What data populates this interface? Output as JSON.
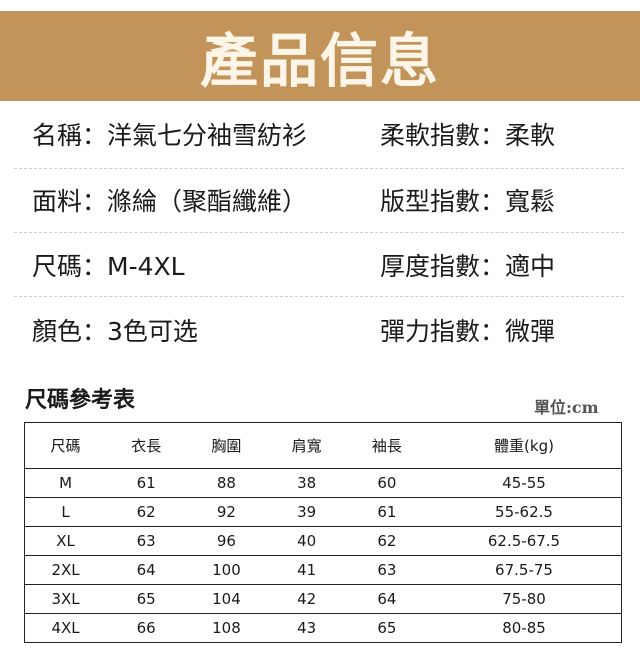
{
  "banner": {
    "title": "產品信息",
    "color": "#c29459"
  },
  "info": [
    {
      "left_label": "名稱：",
      "left_value": "洋氣七分袖雪紡衫",
      "right_label": "柔軟指數：",
      "right_value": "柔軟"
    },
    {
      "left_label": "面料：",
      "left_value": "滌綸（聚酯纖維）",
      "right_label": "版型指數：",
      "right_value": "寬鬆"
    },
    {
      "left_label": "尺碼：",
      "left_value": "M-4XL",
      "right_label": "厚度指數：",
      "right_value": "適中"
    },
    {
      "left_label": "顏色：",
      "left_value": "3色可选",
      "right_label": "彈力指數：",
      "right_value": "微彈"
    }
  ],
  "size_chart": {
    "title": "尺碼參考表",
    "unit": "單位:cm",
    "headers": [
      "尺碼",
      "衣長",
      "胸圍",
      "肩寬",
      "袖長",
      "體重(kg)"
    ],
    "rows": [
      [
        "M",
        "61",
        "88",
        "38",
        "60",
        "45-55"
      ],
      [
        "L",
        "62",
        "92",
        "39",
        "61",
        "55-62.5"
      ],
      [
        "XL",
        "63",
        "96",
        "40",
        "62",
        "62.5-67.5"
      ],
      [
        "2XL",
        "64",
        "100",
        "41",
        "63",
        "67.5-75"
      ],
      [
        "3XL",
        "65",
        "104",
        "42",
        "64",
        "75-80"
      ],
      [
        "4XL",
        "66",
        "108",
        "43",
        "65",
        "80-85"
      ]
    ]
  }
}
